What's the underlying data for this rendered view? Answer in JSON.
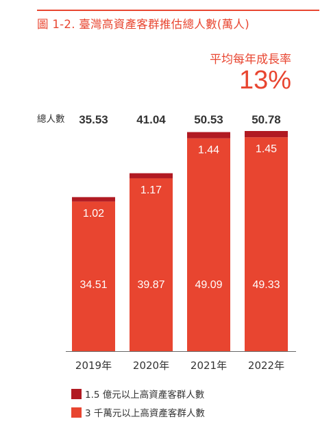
{
  "title": "圖 1-2. 臺灣高資產客群推估總人數(萬人)",
  "growth": {
    "label": "平均每年成長率",
    "value": "13%"
  },
  "total_label": "總人數",
  "colors": {
    "accent": "#e84530",
    "top_segment": "#b11a22",
    "bottom_segment": "#e84530"
  },
  "chart_data": {
    "type": "bar",
    "stacked": true,
    "categories": [
      "2019年",
      "2020年",
      "2021年",
      "2022年"
    ],
    "series": [
      {
        "name": "3 千萬元以上高資產客群人數",
        "values": [
          34.51,
          39.87,
          49.09,
          49.33
        ]
      },
      {
        "name": "1.5 億元以上高資產客群人數",
        "values": [
          1.02,
          1.17,
          1.44,
          1.45
        ]
      }
    ],
    "totals": [
      "35.53",
      "41.04",
      "50.53",
      "50.78"
    ],
    "total_values": [
      35.53,
      41.04,
      50.53,
      50.78
    ],
    "segment_labels": {
      "top": [
        "1.02",
        "1.17",
        "1.44",
        "1.45"
      ],
      "bottom": [
        "34.51",
        "39.87",
        "49.09",
        "49.33"
      ]
    },
    "legend": [
      {
        "label": "1.5 億元以上高資產客群人數",
        "color": "#b11a22"
      },
      {
        "label": "3 千萬元以上高資產客群人數",
        "color": "#e84530"
      }
    ],
    "ylim": [
      0,
      50.78
    ],
    "legend_position": "bottom-left",
    "grid": false
  }
}
